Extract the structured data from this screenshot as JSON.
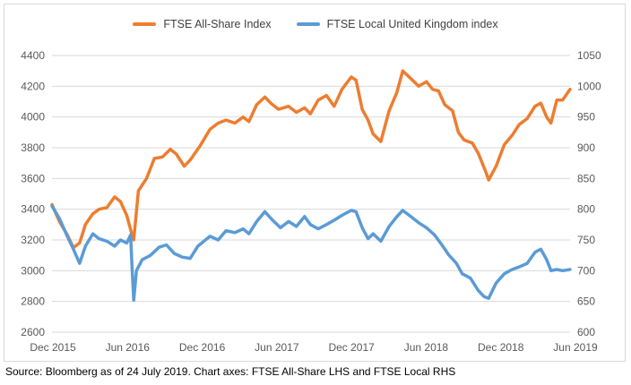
{
  "chart_data": {
    "type": "line",
    "title": "",
    "source": "Source: Bloomberg as of 24 July 2019. Chart axes: FTSE All-Share LHS and FTSE Local RHS",
    "x_ticks": [
      "Dec 2015",
      "Jun 2016",
      "Dec 2016",
      "Jun 2017",
      "Dec 2017",
      "Jun 2018",
      "Dec 2018",
      "Jun 2019"
    ],
    "y_left": {
      "ticks": [
        2600,
        2800,
        3000,
        3200,
        3400,
        3600,
        3800,
        4000,
        4200,
        4400
      ],
      "lim": [
        2600,
        4400
      ]
    },
    "y_right": {
      "ticks": [
        600,
        650,
        700,
        750,
        800,
        850,
        900,
        950,
        1000,
        1050
      ],
      "lim": [
        600,
        1050
      ]
    },
    "grid": true,
    "legend_position": "top",
    "series": [
      {
        "name": "FTSE All-Share Index",
        "axis": "left",
        "color": "#ED7D31",
        "points": [
          [
            "2015-12-01",
            3430
          ],
          [
            "2015-12-20",
            3320
          ],
          [
            "2016-01-10",
            3230
          ],
          [
            "2016-01-25",
            3150
          ],
          [
            "2016-02-10",
            3180
          ],
          [
            "2016-02-25",
            3300
          ],
          [
            "2016-03-15",
            3370
          ],
          [
            "2016-03-31",
            3400
          ],
          [
            "2016-04-20",
            3410
          ],
          [
            "2016-05-10",
            3480
          ],
          [
            "2016-05-25",
            3450
          ],
          [
            "2016-06-10",
            3360
          ],
          [
            "2016-06-24",
            3230
          ],
          [
            "2016-06-28",
            3200
          ],
          [
            "2016-07-10",
            3520
          ],
          [
            "2016-07-31",
            3600
          ],
          [
            "2016-08-20",
            3730
          ],
          [
            "2016-09-10",
            3740
          ],
          [
            "2016-09-30",
            3790
          ],
          [
            "2016-10-15",
            3760
          ],
          [
            "2016-11-05",
            3680
          ],
          [
            "2016-11-20",
            3720
          ],
          [
            "2016-12-15",
            3810
          ],
          [
            "2017-01-10",
            3920
          ],
          [
            "2017-01-31",
            3960
          ],
          [
            "2017-02-20",
            3980
          ],
          [
            "2017-03-15",
            3960
          ],
          [
            "2017-04-05",
            4000
          ],
          [
            "2017-04-20",
            3970
          ],
          [
            "2017-05-10",
            4080
          ],
          [
            "2017-05-31",
            4130
          ],
          [
            "2017-06-15",
            4090
          ],
          [
            "2017-07-05",
            4050
          ],
          [
            "2017-07-31",
            4070
          ],
          [
            "2017-08-20",
            4030
          ],
          [
            "2017-09-10",
            4060
          ],
          [
            "2017-09-25",
            4020
          ],
          [
            "2017-10-15",
            4110
          ],
          [
            "2017-11-05",
            4140
          ],
          [
            "2017-11-25",
            4070
          ],
          [
            "2017-12-15",
            4180
          ],
          [
            "2018-01-08",
            4260
          ],
          [
            "2018-01-20",
            4240
          ],
          [
            "2018-02-05",
            4050
          ],
          [
            "2018-02-20",
            3980
          ],
          [
            "2018-03-05",
            3890
          ],
          [
            "2018-03-25",
            3840
          ],
          [
            "2018-04-15",
            4040
          ],
          [
            "2018-05-05",
            4160
          ],
          [
            "2018-05-20",
            4300
          ],
          [
            "2018-06-10",
            4250
          ],
          [
            "2018-06-30",
            4200
          ],
          [
            "2018-07-20",
            4230
          ],
          [
            "2018-08-05",
            4180
          ],
          [
            "2018-08-20",
            4170
          ],
          [
            "2018-09-05",
            4080
          ],
          [
            "2018-09-25",
            4040
          ],
          [
            "2018-10-10",
            3900
          ],
          [
            "2018-10-25",
            3850
          ],
          [
            "2018-11-15",
            3830
          ],
          [
            "2018-12-01",
            3760
          ],
          [
            "2018-12-20",
            3640
          ],
          [
            "2018-12-27",
            3590
          ],
          [
            "2019-01-15",
            3680
          ],
          [
            "2019-02-05",
            3820
          ],
          [
            "2019-02-25",
            3880
          ],
          [
            "2019-03-15",
            3950
          ],
          [
            "2019-04-05",
            3990
          ],
          [
            "2019-04-25",
            4070
          ],
          [
            "2019-05-10",
            4090
          ],
          [
            "2019-05-25",
            4000
          ],
          [
            "2019-06-05",
            3960
          ],
          [
            "2019-06-20",
            4110
          ],
          [
            "2019-07-05",
            4110
          ],
          [
            "2019-07-24",
            4180
          ]
        ]
      },
      {
        "name": "FTSE Local United Kingdom index",
        "axis": "right",
        "color": "#5B9BD5",
        "points": [
          [
            "2015-12-01",
            805
          ],
          [
            "2015-12-20",
            785
          ],
          [
            "2016-01-10",
            755
          ],
          [
            "2016-01-25",
            735
          ],
          [
            "2016-02-10",
            712
          ],
          [
            "2016-02-25",
            740
          ],
          [
            "2016-03-15",
            760
          ],
          [
            "2016-03-31",
            752
          ],
          [
            "2016-04-20",
            748
          ],
          [
            "2016-05-10",
            740
          ],
          [
            "2016-05-25",
            750
          ],
          [
            "2016-06-10",
            745
          ],
          [
            "2016-06-20",
            758
          ],
          [
            "2016-06-24",
            700
          ],
          [
            "2016-06-28",
            652
          ],
          [
            "2016-07-05",
            700
          ],
          [
            "2016-07-20",
            718
          ],
          [
            "2016-08-10",
            725
          ],
          [
            "2016-09-01",
            738
          ],
          [
            "2016-09-20",
            742
          ],
          [
            "2016-10-10",
            728
          ],
          [
            "2016-10-31",
            722
          ],
          [
            "2016-11-20",
            720
          ],
          [
            "2016-12-10",
            740
          ],
          [
            "2017-01-10",
            756
          ],
          [
            "2017-01-31",
            750
          ],
          [
            "2017-02-20",
            765
          ],
          [
            "2017-03-15",
            762
          ],
          [
            "2017-04-05",
            768
          ],
          [
            "2017-04-20",
            760
          ],
          [
            "2017-05-10",
            780
          ],
          [
            "2017-05-31",
            796
          ],
          [
            "2017-06-20",
            782
          ],
          [
            "2017-07-10",
            770
          ],
          [
            "2017-07-31",
            780
          ],
          [
            "2017-08-20",
            772
          ],
          [
            "2017-09-10",
            788
          ],
          [
            "2017-09-25",
            775
          ],
          [
            "2017-10-15",
            768
          ],
          [
            "2017-11-05",
            775
          ],
          [
            "2017-11-25",
            782
          ],
          [
            "2017-12-15",
            790
          ],
          [
            "2018-01-08",
            798
          ],
          [
            "2018-01-20",
            796
          ],
          [
            "2018-02-05",
            770
          ],
          [
            "2018-02-20",
            752
          ],
          [
            "2018-03-05",
            760
          ],
          [
            "2018-03-25",
            748
          ],
          [
            "2018-04-15",
            772
          ],
          [
            "2018-05-05",
            788
          ],
          [
            "2018-05-20",
            798
          ],
          [
            "2018-06-10",
            788
          ],
          [
            "2018-06-30",
            778
          ],
          [
            "2018-07-20",
            770
          ],
          [
            "2018-08-10",
            758
          ],
          [
            "2018-08-31",
            740
          ],
          [
            "2018-09-15",
            726
          ],
          [
            "2018-10-05",
            712
          ],
          [
            "2018-10-20",
            695
          ],
          [
            "2018-11-10",
            688
          ],
          [
            "2018-11-30",
            668
          ],
          [
            "2018-12-15",
            658
          ],
          [
            "2018-12-27",
            655
          ],
          [
            "2019-01-15",
            680
          ],
          [
            "2019-02-05",
            695
          ],
          [
            "2019-02-25",
            702
          ],
          [
            "2019-03-15",
            706
          ],
          [
            "2019-04-05",
            712
          ],
          [
            "2019-04-25",
            730
          ],
          [
            "2019-05-10",
            735
          ],
          [
            "2019-05-25",
            718
          ],
          [
            "2019-06-05",
            700
          ],
          [
            "2019-06-20",
            702
          ],
          [
            "2019-07-05",
            700
          ],
          [
            "2019-07-24",
            702
          ]
        ]
      }
    ]
  }
}
